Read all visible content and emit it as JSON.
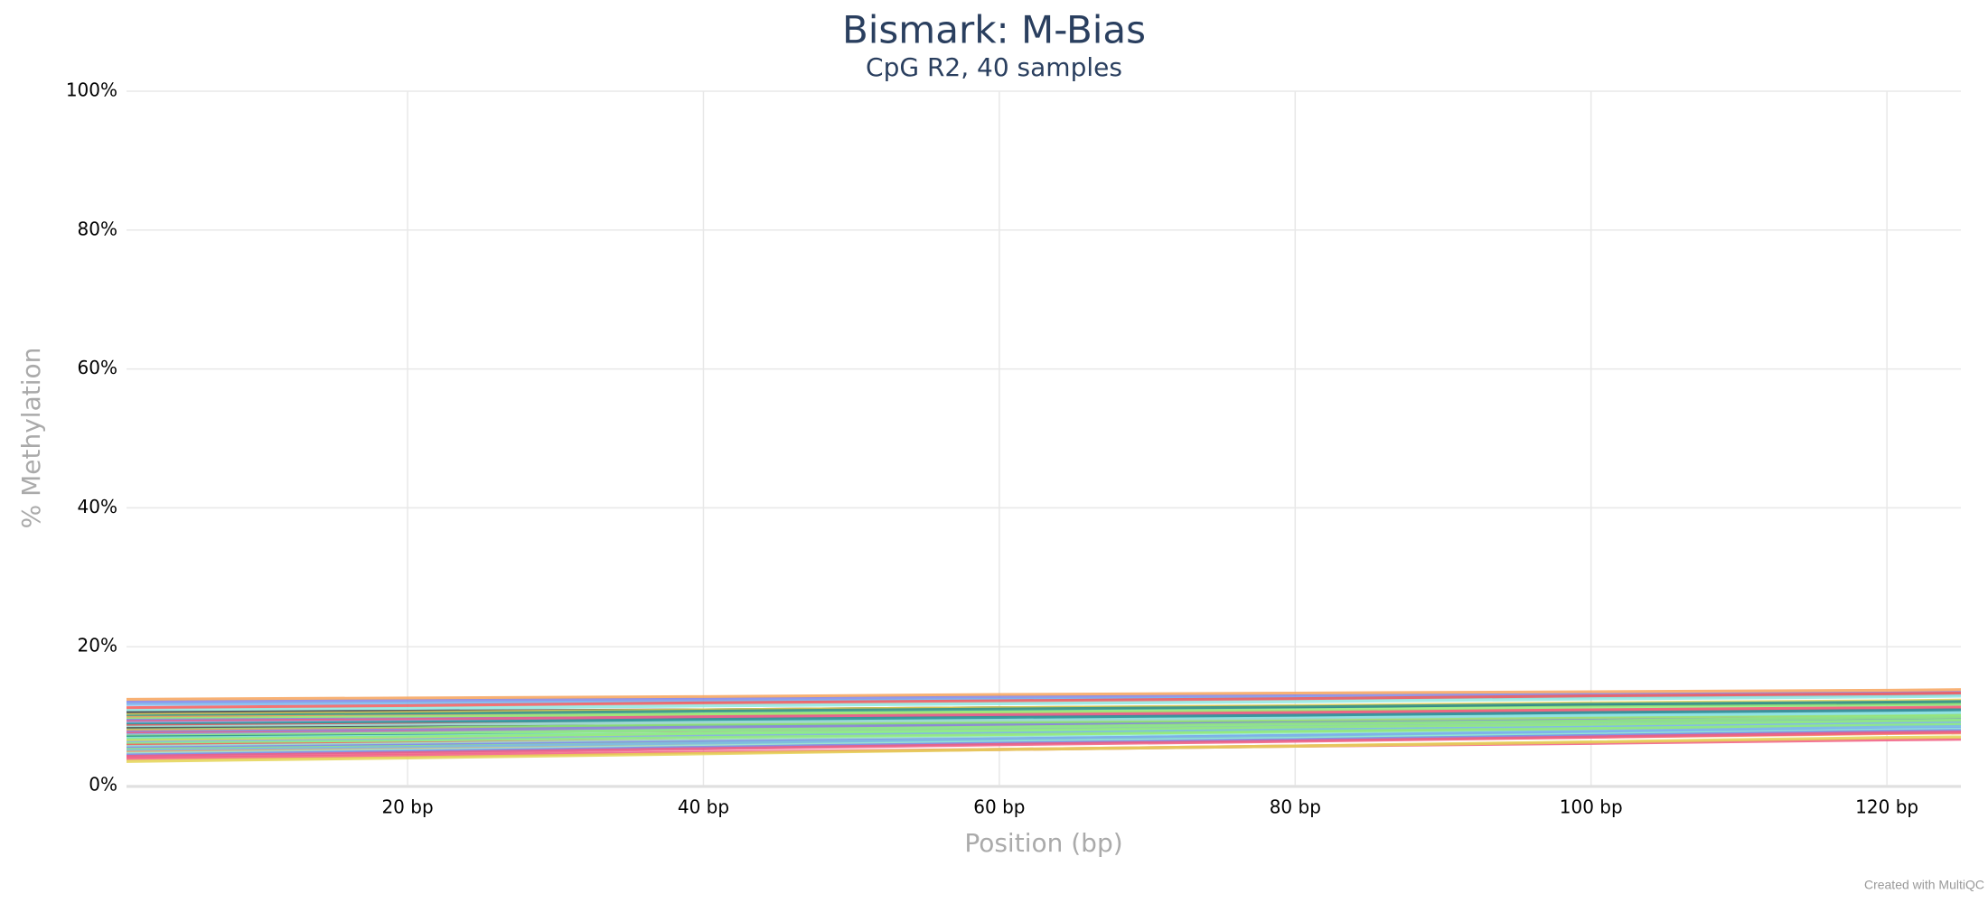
{
  "chart_data": {
    "type": "line",
    "title": "Bismark: M-Bias",
    "subtitle": "CpG R2, 40 samples",
    "ylabel": "% Methylation",
    "xlabel": "Position (bp)",
    "credit": "Created with MultiQC",
    "grid": true,
    "xlim": [
      1,
      125
    ],
    "ylim": [
      0,
      100
    ],
    "xticks": [
      {
        "value": 20,
        "label": "20 bp"
      },
      {
        "value": 40,
        "label": "40 bp"
      },
      {
        "value": 60,
        "label": "60 bp"
      },
      {
        "value": 80,
        "label": "80 bp"
      },
      {
        "value": 100,
        "label": "100 bp"
      },
      {
        "value": 120,
        "label": "120 bp"
      }
    ],
    "yticks": [
      {
        "value": 0,
        "label": "0%"
      },
      {
        "value": 20,
        "label": "20%"
      },
      {
        "value": 40,
        "label": "40%"
      },
      {
        "value": 60,
        "label": "60%"
      },
      {
        "value": 80,
        "label": "80%"
      },
      {
        "value": 100,
        "label": "100%"
      }
    ],
    "x": [
      1,
      20,
      40,
      60,
      80,
      100,
      120,
      125
    ],
    "series": [
      {
        "color": "#f7a35c",
        "values": [
          12.4,
          12.6,
          12.8,
          13.1,
          13.3,
          13.5,
          13.7,
          13.8
        ]
      },
      {
        "color": "#8085e9",
        "values": [
          12,
          12.2,
          12.4,
          12.7,
          12.9,
          13.1,
          13.3,
          13.4
        ]
      },
      {
        "color": "#7cb5ec",
        "values": [
          11.7,
          11.9,
          12.1,
          12.4,
          12.6,
          12.8,
          13,
          13.1
        ]
      },
      {
        "color": "#f45b5b",
        "values": [
          11.2,
          11.5,
          11.9,
          12.2,
          12.5,
          12.9,
          13.2,
          13.3
        ]
      },
      {
        "color": "#91e8e1",
        "values": [
          10.8,
          11.1,
          11.5,
          11.8,
          12.1,
          12.5,
          12.8,
          12.9
        ]
      },
      {
        "color": "#434348",
        "values": [
          10.5,
          10.7,
          10.9,
          11.2,
          11.4,
          11.6,
          11.8,
          11.9
        ]
      },
      {
        "color": "#e4d354",
        "values": [
          10.2,
          10.5,
          10.9,
          11.2,
          11.5,
          11.9,
          12.2,
          12.3
        ]
      },
      {
        "color": "#2b908f",
        "values": [
          10,
          10.3,
          10.7,
          11,
          11.3,
          11.7,
          12,
          12.1
        ]
      },
      {
        "color": "#f7a35c",
        "values": [
          9.8,
          10,
          10.2,
          10.5,
          10.7,
          10.9,
          11.1,
          11.2
        ]
      },
      {
        "color": "#90ed7d",
        "values": [
          9.6,
          9.9,
          10.3,
          10.6,
          10.9,
          11.3,
          11.6,
          11.7
        ]
      },
      {
        "color": "#8085e9",
        "values": [
          9.4,
          9.6,
          9.8,
          10.1,
          10.3,
          10.5,
          10.7,
          10.8
        ]
      },
      {
        "color": "#f15c80",
        "values": [
          9.2,
          9.5,
          9.9,
          10.2,
          10.5,
          10.9,
          11.2,
          11.3
        ]
      },
      {
        "color": "#7cb5ec",
        "values": [
          9,
          9.2,
          9.4,
          9.7,
          9.9,
          10.1,
          10.3,
          10.4
        ]
      },
      {
        "color": "#2b908f",
        "values": [
          8.8,
          9.1,
          9.5,
          9.8,
          10.1,
          10.5,
          10.8,
          10.9
        ]
      },
      {
        "color": "#f45b5b",
        "values": [
          8.6,
          8.8,
          9,
          9.3,
          9.5,
          9.7,
          9.9,
          10
        ]
      },
      {
        "color": "#91e8e1",
        "values": [
          8.4,
          8.7,
          9.1,
          9.4,
          9.7,
          10.1,
          10.4,
          10.5
        ]
      },
      {
        "color": "#434348",
        "values": [
          8.2,
          8.4,
          8.6,
          8.9,
          9.1,
          9.3,
          9.5,
          9.6
        ]
      },
      {
        "color": "#90ed7d",
        "values": [
          8,
          8.3,
          8.7,
          9,
          9.3,
          9.7,
          10,
          10.1
        ]
      },
      {
        "color": "#f7a35c",
        "values": [
          7.9,
          8.1,
          8.3,
          8.6,
          8.8,
          9,
          9.2,
          9.3
        ]
      },
      {
        "color": "#8085e9",
        "values": [
          7.7,
          8,
          8.4,
          8.7,
          9,
          9.4,
          9.7,
          9.8
        ]
      },
      {
        "color": "#f15c80",
        "values": [
          7.5,
          7.7,
          7.9,
          8.2,
          8.4,
          8.6,
          8.8,
          8.9
        ]
      },
      {
        "color": "#7cb5ec",
        "values": [
          7.3,
          7.6,
          8,
          8.3,
          8.6,
          9,
          9.3,
          9.4
        ]
      },
      {
        "color": "#90ed7d",
        "values": [
          7.1,
          7.5,
          8,
          8.4,
          8.9,
          9.3,
          9.8,
          9.9
        ]
      },
      {
        "color": "#2b908f",
        "values": [
          7,
          7.2,
          7.4,
          7.7,
          7.9,
          8.1,
          8.3,
          8.4
        ]
      },
      {
        "color": "#91e8e1",
        "values": [
          6.8,
          7.1,
          7.5,
          7.8,
          8.1,
          8.5,
          8.8,
          8.9
        ]
      },
      {
        "color": "#90ed7d",
        "values": [
          6.6,
          7,
          7.5,
          7.9,
          8.4,
          8.8,
          9.3,
          9.4
        ]
      },
      {
        "color": "#e4d354",
        "values": [
          6.4,
          6.7,
          7.1,
          7.4,
          7.7,
          8.1,
          8.4,
          8.5
        ]
      },
      {
        "color": "#7cb5ec",
        "values": [
          6.2,
          6.6,
          7.1,
          7.5,
          8,
          8.4,
          8.9,
          9
        ]
      },
      {
        "color": "#90ed7d",
        "values": [
          6,
          6.4,
          6.9,
          7.3,
          7.8,
          8.2,
          8.7,
          8.8
        ]
      },
      {
        "color": "#f45b5b",
        "values": [
          5.8,
          6.1,
          6.5,
          6.8,
          7.1,
          7.5,
          7.8,
          7.9
        ]
      },
      {
        "color": "#91e8e1",
        "values": [
          5.6,
          6,
          6.5,
          6.9,
          7.4,
          7.8,
          8.3,
          8.4
        ]
      },
      {
        "color": "#8085e9",
        "values": [
          5.4,
          5.8,
          6.3,
          6.7,
          7.2,
          7.6,
          8.1,
          8.2
        ]
      },
      {
        "color": "#90ed7d",
        "values": [
          5.2,
          5.6,
          6.1,
          6.5,
          7,
          7.4,
          7.9,
          8
        ]
      },
      {
        "color": "#7cb5ec",
        "values": [
          5,
          5.5,
          6.1,
          6.7,
          7.2,
          7.8,
          8.4,
          8.5
        ]
      },
      {
        "color": "#f7a35c",
        "values": [
          4.8,
          5.2,
          5.7,
          6.1,
          6.6,
          7,
          7.5,
          7.6
        ]
      },
      {
        "color": "#91e8e1",
        "values": [
          4.6,
          5.1,
          5.7,
          6.3,
          6.8,
          7.4,
          8,
          8.1
        ]
      },
      {
        "color": "#8085e9",
        "values": [
          4.4,
          4.9,
          5.5,
          6.1,
          6.6,
          7.2,
          7.8,
          7.9
        ]
      },
      {
        "color": "#f15c80",
        "values": [
          4.2,
          4.7,
          5.3,
          5.9,
          6.4,
          7,
          7.6,
          7.7
        ]
      },
      {
        "color": "#f15c80",
        "values": [
          3.9,
          4.3,
          4.8,
          5.2,
          5.7,
          6.1,
          6.6,
          6.7
        ]
      },
      {
        "color": "#e4d354",
        "values": [
          3.5,
          4,
          4.6,
          5.2,
          5.7,
          6.3,
          6.9,
          7
        ]
      }
    ]
  }
}
